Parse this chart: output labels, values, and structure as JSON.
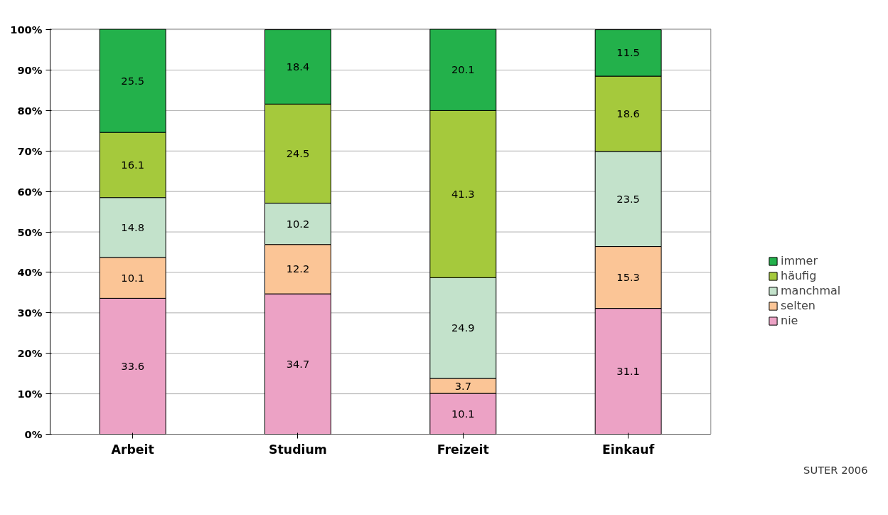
{
  "chart_data": {
    "type": "bar",
    "stacked": true,
    "categories": [
      "Arbeit",
      "Studium",
      "Freizeit",
      "Einkauf"
    ],
    "series": [
      {
        "name": "nie",
        "color": "#eca2c5",
        "values": [
          33.6,
          34.7,
          10.1,
          31.1
        ]
      },
      {
        "name": "selten",
        "color": "#fbc596",
        "values": [
          10.1,
          12.2,
          3.7,
          15.3
        ]
      },
      {
        "name": "manchmal",
        "color": "#c3e2cb",
        "values": [
          14.8,
          10.2,
          24.9,
          23.5
        ]
      },
      {
        "name": "häufig",
        "color": "#a5c93c",
        "values": [
          16.1,
          24.5,
          41.3,
          18.6
        ]
      },
      {
        "name": "immer",
        "color": "#23b14b",
        "values": [
          25.5,
          18.4,
          20.1,
          11.5
        ]
      }
    ],
    "ylim": [
      0,
      100.2
    ],
    "yticks": [
      {
        "value": 0,
        "label": "0%"
      },
      {
        "value": 10,
        "label": "10%"
      },
      {
        "value": 20,
        "label": "20%"
      },
      {
        "value": 30,
        "label": "30%"
      },
      {
        "value": 40,
        "label": "40%"
      },
      {
        "value": 50,
        "label": "50%"
      },
      {
        "value": 60,
        "label": "60%"
      },
      {
        "value": 70,
        "label": "70%"
      },
      {
        "value": 80,
        "label": "80%"
      },
      {
        "value": 90,
        "label": "90%"
      },
      {
        "value": 100,
        "label": "100%"
      }
    ],
    "grid": "y",
    "legend": "right",
    "data_labels": true,
    "annotations": [
      "SUTER 2006"
    ]
  }
}
